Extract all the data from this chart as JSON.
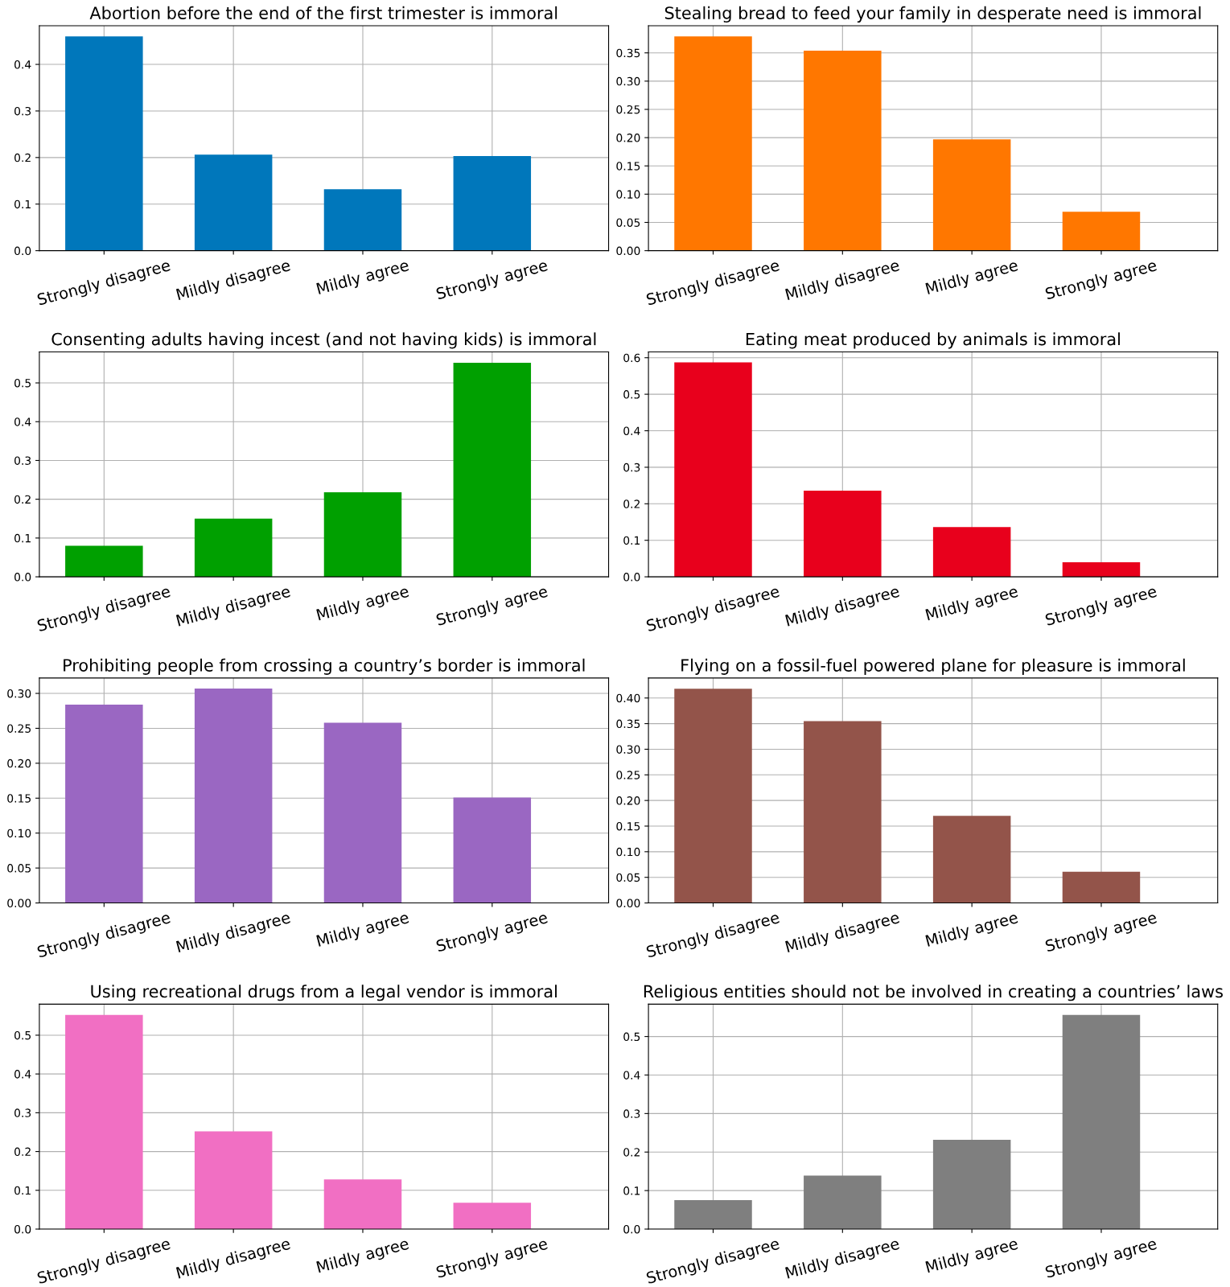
{
  "chart_data": [
    {
      "type": "bar",
      "title": "Abortion before the end of the first trimester is immoral",
      "categories": [
        "Strongly disagree",
        "Mildly disagree",
        "Mildly agree",
        "Strongly agree"
      ],
      "values": [
        0.46,
        0.206,
        0.132,
        0.203
      ],
      "color": "#0077bb",
      "ylim": [
        0,
        0.483
      ],
      "yticks": [
        {
          "value": 0,
          "label": "0.0"
        },
        {
          "value": 0.1,
          "label": "0.1"
        },
        {
          "value": 0.2,
          "label": "0.2"
        },
        {
          "value": 0.3,
          "label": "0.3"
        },
        {
          "value": 0.4,
          "label": "0.4"
        }
      ],
      "grid": true
    },
    {
      "type": "bar",
      "title": "Stealing bread to feed your family in desperate need is immoral",
      "categories": [
        "Strongly disagree",
        "Mildly disagree",
        "Mildly agree",
        "Strongly agree"
      ],
      "values": [
        0.379,
        0.354,
        0.197,
        0.069
      ],
      "color": "#ff7700",
      "ylim": [
        0,
        0.398
      ],
      "yticks": [
        {
          "value": 0,
          "label": "0.00"
        },
        {
          "value": 0.05,
          "label": "0.05"
        },
        {
          "value": 0.1,
          "label": "0.10"
        },
        {
          "value": 0.15,
          "label": "0.15"
        },
        {
          "value": 0.2,
          "label": "0.20"
        },
        {
          "value": 0.25,
          "label": "0.25"
        },
        {
          "value": 0.3,
          "label": "0.30"
        },
        {
          "value": 0.35,
          "label": "0.35"
        }
      ],
      "grid": true
    },
    {
      "type": "bar",
      "title": "Consenting adults having incest (and not having kids) is immoral",
      "categories": [
        "Strongly disagree",
        "Mildly disagree",
        "Mildly agree",
        "Strongly agree"
      ],
      "values": [
        0.08,
        0.15,
        0.218,
        0.552
      ],
      "color": "#00a000",
      "ylim": [
        0,
        0.58
      ],
      "yticks": [
        {
          "value": 0,
          "label": "0.0"
        },
        {
          "value": 0.1,
          "label": "0.1"
        },
        {
          "value": 0.2,
          "label": "0.2"
        },
        {
          "value": 0.3,
          "label": "0.3"
        },
        {
          "value": 0.4,
          "label": "0.4"
        },
        {
          "value": 0.5,
          "label": "0.5"
        }
      ],
      "grid": true
    },
    {
      "type": "bar",
      "title": "Eating meat produced by animals is immoral",
      "categories": [
        "Strongly disagree",
        "Mildly disagree",
        "Mildly agree",
        "Strongly agree"
      ],
      "values": [
        0.587,
        0.236,
        0.136,
        0.04
      ],
      "color": "#e8001c",
      "ylim": [
        0,
        0.616
      ],
      "yticks": [
        {
          "value": 0,
          "label": "0.0"
        },
        {
          "value": 0.1,
          "label": "0.1"
        },
        {
          "value": 0.2,
          "label": "0.2"
        },
        {
          "value": 0.3,
          "label": "0.3"
        },
        {
          "value": 0.4,
          "label": "0.4"
        },
        {
          "value": 0.5,
          "label": "0.5"
        },
        {
          "value": 0.6,
          "label": "0.6"
        }
      ],
      "grid": true
    },
    {
      "type": "bar",
      "title": "Prohibiting people from crossing a country’s border is immoral",
      "categories": [
        "Strongly disagree",
        "Mildly disagree",
        "Mildly agree",
        "Strongly agree"
      ],
      "values": [
        0.284,
        0.307,
        0.258,
        0.151
      ],
      "color": "#9a67c2",
      "ylim": [
        0,
        0.322
      ],
      "yticks": [
        {
          "value": 0,
          "label": "0.00"
        },
        {
          "value": 0.05,
          "label": "0.05"
        },
        {
          "value": 0.1,
          "label": "0.10"
        },
        {
          "value": 0.15,
          "label": "0.15"
        },
        {
          "value": 0.2,
          "label": "0.20"
        },
        {
          "value": 0.25,
          "label": "0.25"
        },
        {
          "value": 0.3,
          "label": "0.30"
        }
      ],
      "grid": true
    },
    {
      "type": "bar",
      "title": "Flying on a fossil-fuel powered plane for pleasure is immoral",
      "categories": [
        "Strongly disagree",
        "Mildly disagree",
        "Mildly agree",
        "Strongly agree"
      ],
      "values": [
        0.418,
        0.355,
        0.17,
        0.061
      ],
      "color": "#93544a",
      "ylim": [
        0,
        0.439
      ],
      "yticks": [
        {
          "value": 0,
          "label": "0.00"
        },
        {
          "value": 0.05,
          "label": "0.05"
        },
        {
          "value": 0.1,
          "label": "0.10"
        },
        {
          "value": 0.15,
          "label": "0.15"
        },
        {
          "value": 0.2,
          "label": "0.20"
        },
        {
          "value": 0.25,
          "label": "0.25"
        },
        {
          "value": 0.3,
          "label": "0.30"
        },
        {
          "value": 0.35,
          "label": "0.35"
        },
        {
          "value": 0.4,
          "label": "0.40"
        }
      ],
      "grid": true
    },
    {
      "type": "bar",
      "title": "Using recreational drugs from a legal vendor is immoral",
      "categories": [
        "Strongly disagree",
        "Mildly disagree",
        "Mildly agree",
        "Strongly agree"
      ],
      "values": [
        0.552,
        0.252,
        0.128,
        0.068
      ],
      "color": "#f16fc3",
      "ylim": [
        0,
        0.58
      ],
      "yticks": [
        {
          "value": 0,
          "label": "0.0"
        },
        {
          "value": 0.1,
          "label": "0.1"
        },
        {
          "value": 0.2,
          "label": "0.2"
        },
        {
          "value": 0.3,
          "label": "0.3"
        },
        {
          "value": 0.4,
          "label": "0.4"
        },
        {
          "value": 0.5,
          "label": "0.5"
        }
      ],
      "grid": true
    },
    {
      "type": "bar",
      "title": "Religious entities should not be involved in creating a countries’ laws",
      "categories": [
        "Strongly disagree",
        "Mildly disagree",
        "Mildly agree",
        "Strongly agree"
      ],
      "values": [
        0.075,
        0.139,
        0.232,
        0.556
      ],
      "color": "#7f7f7f",
      "ylim": [
        0,
        0.584
      ],
      "yticks": [
        {
          "value": 0,
          "label": "0.0"
        },
        {
          "value": 0.1,
          "label": "0.1"
        },
        {
          "value": 0.2,
          "label": "0.2"
        },
        {
          "value": 0.3,
          "label": "0.3"
        },
        {
          "value": 0.4,
          "label": "0.4"
        },
        {
          "value": 0.5,
          "label": "0.5"
        }
      ],
      "grid": true
    }
  ]
}
